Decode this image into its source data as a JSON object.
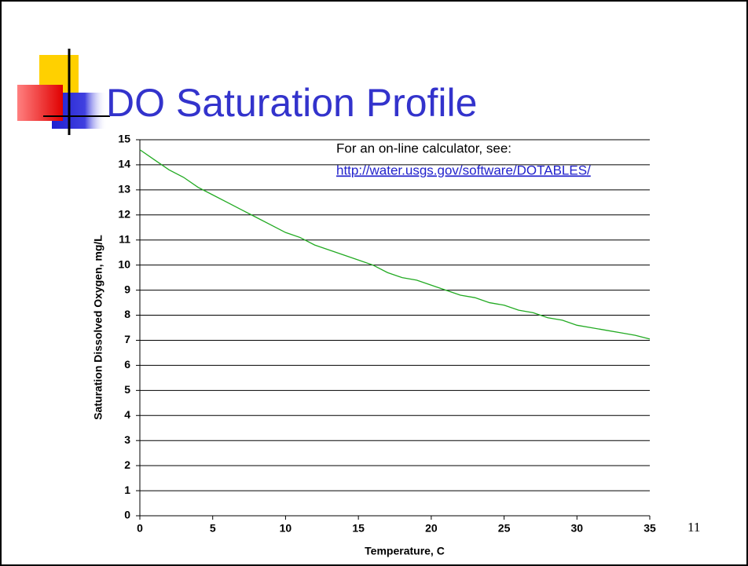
{
  "slide_title": "DO Saturation Profile",
  "page_number": "11",
  "chart_data": {
    "type": "line",
    "annotation": "For an on-line calculator, see:",
    "link": "http://water.usgs.gov/software/DOTABLES/",
    "xlabel": "Temperature, C",
    "ylabel": "Saturation Dissolved Oxygen, mg/L",
    "color": "#22aa22",
    "x": [
      0,
      1,
      2,
      3,
      4,
      5,
      6,
      7,
      8,
      9,
      10,
      11,
      12,
      13,
      14,
      15,
      16,
      17,
      18,
      19,
      20,
      21,
      22,
      23,
      24,
      25,
      26,
      27,
      28,
      29,
      30,
      31,
      32,
      33,
      34,
      35
    ],
    "values": [
      14.6,
      14.2,
      13.8,
      13.5,
      13.1,
      12.8,
      12.5,
      12.2,
      11.9,
      11.6,
      11.3,
      11.1,
      10.8,
      10.6,
      10.4,
      10.2,
      10.0,
      9.7,
      9.5,
      9.4,
      9.2,
      9.0,
      8.8,
      8.7,
      8.5,
      8.4,
      8.2,
      8.1,
      7.9,
      7.8,
      7.6,
      7.5,
      7.4,
      7.3,
      7.2,
      7.05
    ],
    "xlim": [
      0,
      35
    ],
    "ylim": [
      0,
      15
    ],
    "xticks": [
      0,
      5,
      10,
      15,
      20,
      25,
      30,
      35
    ],
    "yticks": [
      0,
      1,
      2,
      3,
      4,
      5,
      6,
      7,
      8,
      9,
      10,
      11,
      12,
      13,
      14,
      15
    ],
    "grid": true
  }
}
